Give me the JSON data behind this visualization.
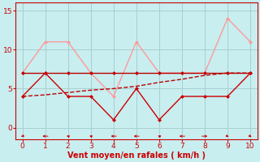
{
  "x": [
    0,
    1,
    2,
    3,
    4,
    5,
    6,
    7,
    8,
    9,
    10
  ],
  "line_flat": {
    "y": [
      7,
      7,
      7,
      7,
      7,
      7,
      7,
      7,
      7,
      7,
      7
    ],
    "color": "#bb0000",
    "lw": 1.0,
    "marker": "D",
    "markersize": 2.5,
    "linestyle": "-"
  },
  "line_dashed": {
    "y": [
      4.0,
      4.2,
      4.5,
      4.8,
      5.0,
      5.3,
      5.8,
      6.2,
      6.7,
      7.0,
      7.0
    ],
    "color": "#bb0000",
    "lw": 1.0,
    "linestyle": "--"
  },
  "line_zigzag": {
    "y": [
      4,
      7,
      4,
      4,
      1,
      5,
      1,
      4,
      4,
      4,
      7
    ],
    "color": "#cc0000",
    "lw": 1.0,
    "marker": "D",
    "markersize": 2.5,
    "linestyle": "-"
  },
  "line_pink": {
    "y": [
      7,
      11,
      11,
      7,
      4,
      11,
      7,
      7,
      7,
      14,
      11
    ],
    "color": "#ff9999",
    "lw": 1.0,
    "marker": "D",
    "markersize": 2.5,
    "linestyle": "-"
  },
  "xlabel": "Vent moyen/en rafales ( km/h )",
  "xlim": [
    -0.3,
    10.3
  ],
  "ylim": [
    -1.5,
    16
  ],
  "yticks": [
    0,
    5,
    10,
    15
  ],
  "xticks": [
    0,
    1,
    2,
    3,
    4,
    5,
    6,
    7,
    8,
    9,
    10
  ],
  "bg_color": "#c8eef0",
  "grid_color": "#aacfcf",
  "xlabel_color": "#cc0000",
  "tick_color": "#cc0000",
  "spine_color": "#cc0000"
}
